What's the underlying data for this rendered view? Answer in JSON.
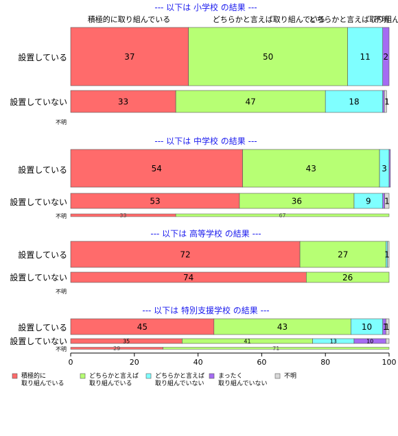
{
  "chart_data": {
    "type": "bar",
    "orientation": "horizontal",
    "stacked": true,
    "xlim": [
      0,
      100
    ],
    "xticks": [
      0,
      20,
      40,
      60,
      80,
      100
    ],
    "category_order": [
      "積極的に取り組んでいる",
      "どちらかと言えば取り組んでいる",
      "どちらかと言えば取り組んでいない",
      "まったく取り組んでいない",
      "不明"
    ],
    "colors": [
      "#ff6b6b",
      "#b7ff74",
      "#7fffff",
      "#a56cf2",
      "#d9d9d9"
    ],
    "top_header_labels": [
      "積極的に取り組んでいる",
      "どちらかと言えば取り組んでいる",
      "どちらかと言えば取り組んでいない",
      "",
      "不明"
    ],
    "legend": {
      "position": "bottom",
      "items": [
        {
          "label": "積極的に\n取り組んでいる",
          "color": "#ff6b6b"
        },
        {
          "label": "どちらかと言えば\n取り組んでいる",
          "color": "#b7ff74"
        },
        {
          "label": "どちらかと言えば\n取り組んでいない",
          "color": "#7fffff"
        },
        {
          "label": "まったく\n取り組んでいない",
          "color": "#a56cf2"
        },
        {
          "label": "不明",
          "color": "#d9d9d9"
        }
      ]
    },
    "panels": [
      {
        "title": "--- 以下は 小学校 の結果 ---",
        "rows": [
          {
            "label": "設置している",
            "values": [
              37,
              50,
              11,
              2,
              0
            ],
            "labels": [
              "37",
              "50",
              "11",
              "2",
              ""
            ]
          },
          {
            "label": "設置していない",
            "values": [
              33,
              47,
              18,
              0.5,
              0.7
            ],
            "labels": [
              "33",
              "47",
              "18",
              "",
              "1"
            ]
          }
        ],
        "unknown": {
          "label": "不明",
          "values": null
        }
      },
      {
        "title": "--- 以下は 中学校 の結果 ---",
        "rows": [
          {
            "label": "設置している",
            "values": [
              54,
              43,
              3,
              0.4,
              0
            ],
            "labels": [
              "54",
              "43",
              "3",
              "",
              ""
            ]
          },
          {
            "label": "設置していない",
            "values": [
              53,
              36,
              9,
              0.6,
              1.4
            ],
            "labels": [
              "53",
              "36",
              "9",
              "",
              "1"
            ]
          }
        ],
        "unknown": {
          "label": "不明",
          "values": [
            33,
            67,
            0,
            0,
            0
          ],
          "labels": [
            "33",
            "67",
            "",
            "",
            ""
          ]
        }
      },
      {
        "title": "--- 以下は 高等学校 の結果 ---",
        "rows": [
          {
            "label": "設置している",
            "values": [
              72,
              27,
              0.5,
              0,
              0.5
            ],
            "labels": [
              "72",
              "27",
              "",
              "",
              "1"
            ]
          },
          {
            "label": "設置していない",
            "values": [
              74,
              26,
              0,
              0,
              0
            ],
            "labels": [
              "74",
              "26",
              "",
              "",
              ""
            ]
          }
        ],
        "unknown": {
          "label": "不明",
          "values": null
        }
      },
      {
        "title": "--- 以下は 特別支援学校 の結果 ---",
        "rows": [
          {
            "label": "設置している",
            "values": [
              45,
              43,
              10,
              1,
              1
            ],
            "labels": [
              "45",
              "43",
              "10",
              "1",
              "1"
            ]
          },
          {
            "label": "設置していない",
            "values": [
              35,
              41,
              13,
              10,
              1
            ],
            "labels": [
              "35",
              "41",
              "13",
              "10",
              ""
            ]
          }
        ],
        "unknown": {
          "label": "不明",
          "values": [
            29,
            71,
            0,
            0,
            0
          ],
          "labels": [
            "29",
            "71",
            "",
            "",
            ""
          ]
        }
      }
    ]
  }
}
